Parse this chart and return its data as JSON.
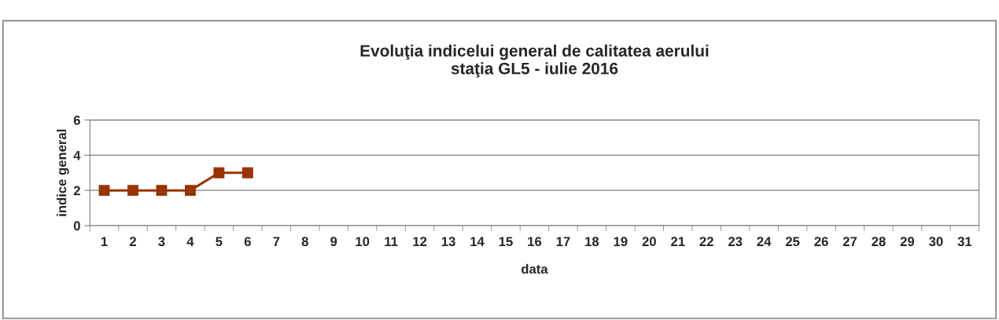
{
  "chart_data": {
    "type": "line",
    "title": "Evoluţia indicelui general de calitatea aerului\nstaţia GL5 - iulie 2016",
    "xlabel": "data",
    "ylabel": "indice general",
    "categories": [
      "1",
      "2",
      "3",
      "4",
      "5",
      "6",
      "7",
      "8",
      "9",
      "10",
      "11",
      "12",
      "13",
      "14",
      "15",
      "16",
      "17",
      "18",
      "19",
      "20",
      "21",
      "22",
      "23",
      "24",
      "25",
      "26",
      "27",
      "28",
      "29",
      "30",
      "31"
    ],
    "series": [
      {
        "color": "#993300",
        "values": [
          2,
          2,
          2,
          2,
          3,
          3,
          null,
          null,
          null,
          null,
          null,
          null,
          null,
          null,
          null,
          null,
          null,
          null,
          null,
          null,
          null,
          null,
          null,
          null,
          null,
          null,
          null,
          null,
          null,
          null,
          null
        ]
      }
    ],
    "ylim": [
      0,
      6
    ],
    "yticks": [
      0,
      2,
      4,
      6
    ],
    "grid": "y",
    "marker": "square",
    "line_style": "solid",
    "legend": false
  }
}
